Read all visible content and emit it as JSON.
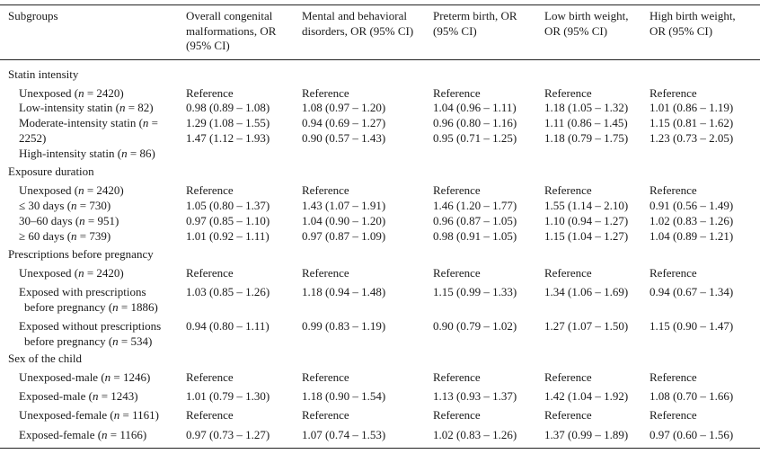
{
  "headers": {
    "subgroups": "Subgroups",
    "col1": [
      "Overall congenital",
      "malformations, OR",
      "(95% CI)"
    ],
    "col2": [
      "Mental and behavioral",
      "disorders, OR (95% CI)"
    ],
    "col3": [
      "Preterm birth, OR",
      "(95% CI)"
    ],
    "col4": [
      "Low birth weight,",
      "OR (95% CI)"
    ],
    "col5": [
      "High birth weight,",
      "OR (95% CI)"
    ]
  },
  "sections": {
    "statin_intensity": "Statin intensity",
    "exposure_duration": "Exposure duration",
    "prescriptions": "Prescriptions before pregnancy",
    "sex": "Sex of the child"
  },
  "rows": {
    "si_unexposed": {
      "label": [
        "Unexposed (",
        "n",
        " = 2420)"
      ],
      "v": [
        "Reference",
        "Reference",
        "Reference",
        "Reference",
        "Reference"
      ]
    },
    "si_low": {
      "label": [
        "Low-intensity statin (",
        "n",
        " = 82)"
      ],
      "v": [
        "0.98 (0.89 – 1.08)",
        "1.08 (0.97 – 1.20)",
        "1.04 (0.96 – 1.11)",
        "1.18 (1.05 – 1.32)",
        "1.01 (0.86 – 1.19)"
      ]
    },
    "si_moderate": {
      "label": [
        "Moderate-intensity statin (",
        "n",
        " ="
      ],
      "label2": "2252)",
      "v": [
        "1.29 (1.08 – 1.55)",
        "0.94 (0.69 – 1.27)",
        "0.96 (0.80 – 1.16)",
        "1.11 (0.86 – 1.45)",
        "1.15 (0.81 – 1.62)"
      ]
    },
    "si_high": {
      "label": [
        "High-intensity statin (",
        "n",
        " = 86)"
      ],
      "v": [
        "1.47 (1.12 – 1.93)",
        "0.90 (0.57 – 1.43)",
        "0.95 (0.71 – 1.25)",
        "1.18 (0.79 – 1.75)",
        "1.23 (0.73 – 2.05)"
      ]
    },
    "ed_unexposed": {
      "label": [
        "Unexposed (",
        "n",
        " = 2420)"
      ],
      "v": [
        "Reference",
        "Reference",
        "Reference",
        "Reference",
        "Reference"
      ]
    },
    "ed_30": {
      "label": [
        "≤ 30 days (",
        "n",
        " = 730)"
      ],
      "v": [
        "1.05 (0.80 – 1.37)",
        "1.43 (1.07 – 1.91)",
        "1.46 (1.20 – 1.77)",
        "1.55 (1.14 – 2.10)",
        "0.91 (0.56 – 1.49)"
      ]
    },
    "ed_30_60": {
      "label": [
        "30–60 days (",
        "n",
        " = 951)"
      ],
      "v": [
        "0.97 (0.85 – 1.10)",
        "1.04 (0.90 – 1.20)",
        "0.96 (0.87 – 1.05)",
        "1.10 (0.94 – 1.27)",
        "1.02 (0.83 – 1.26)"
      ]
    },
    "ed_60": {
      "label": [
        "≥ 60 days (",
        "n",
        " = 739)"
      ],
      "v": [
        "1.01 (0.92 – 1.11)",
        "0.97 (0.87 – 1.09)",
        "0.98 (0.91 – 1.05)",
        "1.15 (1.04 – 1.27)",
        "1.04 (0.89 – 1.21)"
      ]
    },
    "pb_unexposed": {
      "label": [
        "Unexposed (",
        "n",
        " = 2420)"
      ],
      "v": [
        "Reference",
        "Reference",
        "Reference",
        "Reference",
        "Reference"
      ]
    },
    "pb_with": {
      "label": "Exposed with prescriptions",
      "label2": [
        "before pregnancy (",
        "n",
        " = 1886)"
      ],
      "v": [
        "1.03 (0.85 – 1.26)",
        "1.18 (0.94 – 1.48)",
        "1.15 (0.99 – 1.33)",
        "1.34 (1.06 – 1.69)",
        "0.94 (0.67 – 1.34)"
      ]
    },
    "pb_without": {
      "label": "Exposed without prescriptions",
      "label2": [
        "before pregnancy (",
        "n",
        " = 534)"
      ],
      "v": [
        "0.94 (0.80 – 1.11)",
        "0.99 (0.83 – 1.19)",
        "0.90 (0.79 – 1.02)",
        "1.27 (1.07 – 1.50)",
        "1.15 (0.90 – 1.47)"
      ]
    },
    "sx_um": {
      "label": [
        "Unexposed-male (",
        "n",
        " = 1246)"
      ],
      "v": [
        "Reference",
        "Reference",
        "Reference",
        "Reference",
        "Reference"
      ]
    },
    "sx_em": {
      "label": [
        "Exposed-male (",
        "n",
        " = 1243)"
      ],
      "v": [
        "1.01 (0.79 – 1.30)",
        "1.18 (0.90 – 1.54)",
        "1.13 (0.93 – 1.37)",
        "1.42 (1.04 – 1.92)",
        "1.08 (0.70 – 1.66)"
      ]
    },
    "sx_uf": {
      "label": [
        "Unexposed-female (",
        "n",
        " = 1161)"
      ],
      "v": [
        "Reference",
        "Reference",
        "Reference",
        "Reference",
        "Reference"
      ]
    },
    "sx_ef": {
      "label": [
        "Exposed-female (",
        "n",
        " = 1166)"
      ],
      "v": [
        "0.97 (0.73 – 1.27)",
        "1.07 (0.74 – 1.53)",
        "1.02 (0.83 – 1.26)",
        "1.37 (0.99 – 1.89)",
        "0.97 (0.60 – 1.56)"
      ]
    }
  }
}
